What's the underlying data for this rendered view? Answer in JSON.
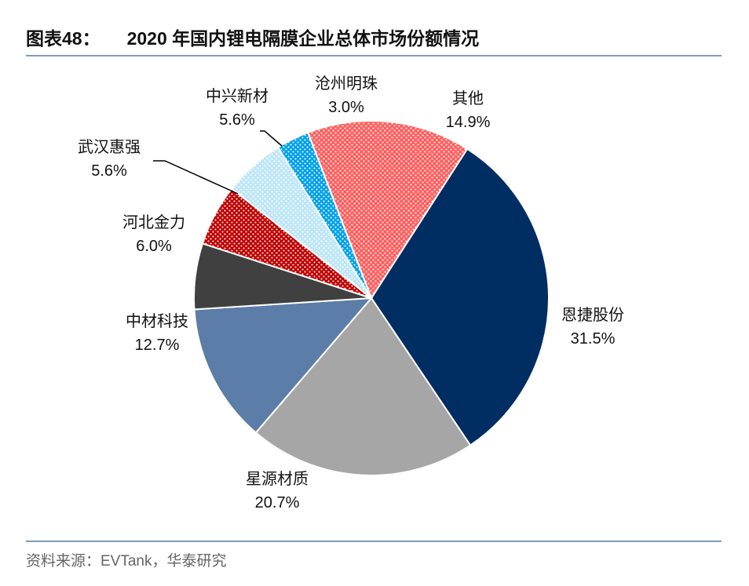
{
  "title": {
    "figure_num": "图表48：",
    "text": "2020 年国内锂电隔膜企业总体市场份额情况"
  },
  "source": "资料来源：EVTank，华泰研究",
  "chart_data": {
    "type": "pie",
    "title": "2020 年国内锂电隔膜企业总体市场份额情况",
    "start_angle_deg": 32.7,
    "direction": "clockwise",
    "slices": [
      {
        "name": "恩捷股份",
        "value": 31.5,
        "label": "31.5%",
        "color": "#002d62",
        "pattern": "solid"
      },
      {
        "name": "星源材质",
        "value": 20.7,
        "label": "20.7%",
        "color": "#a6a6a6",
        "pattern": "solid"
      },
      {
        "name": "中材科技",
        "value": 12.7,
        "label": "12.7%",
        "color": "#5b7da8",
        "pattern": "solid"
      },
      {
        "name": "河北金力",
        "value": 6.0,
        "label": "6.0%",
        "color": "#404040",
        "pattern": "solid"
      },
      {
        "name": "武汉惠强",
        "value": 5.6,
        "label": "5.6%",
        "color": "#c00000",
        "pattern": "dots"
      },
      {
        "name": "中兴新材",
        "value": 5.6,
        "label": "5.6%",
        "color": "#bde6f8",
        "pattern": "dots"
      },
      {
        "name": "沧州明珠",
        "value": 3.0,
        "label": "3.0%",
        "color": "#00a0e9",
        "pattern": "dots"
      },
      {
        "name": "其他",
        "value": 14.9,
        "label": "14.9%",
        "color": "#ff5f5f",
        "pattern": "dots"
      }
    ]
  }
}
